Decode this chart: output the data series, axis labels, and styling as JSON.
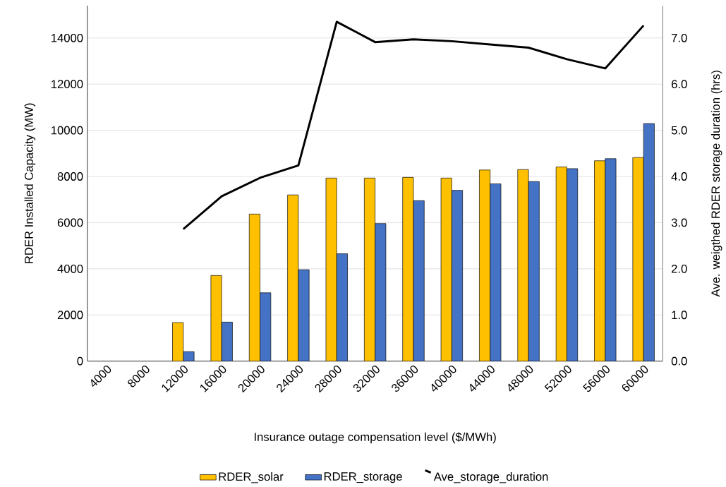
{
  "chart_data": {
    "type": "bar",
    "xlabel": "Insurance outage compensation level ($/MWh)",
    "ylabel": "RDER Installed Capacity (MW)",
    "y2label": "Ave. weigthed RDER storage duration (hrs)",
    "categories": [
      "4000",
      "8000",
      "12000",
      "16000",
      "20000",
      "24000",
      "28000",
      "32000",
      "36000",
      "40000",
      "44000",
      "48000",
      "52000",
      "56000",
      "60000"
    ],
    "series": [
      {
        "name": "RDER_solar",
        "color": "#ffc000",
        "values": [
          null,
          null,
          1670,
          3710,
          6370,
          7200,
          7930,
          7930,
          7960,
          7930,
          8280,
          8300,
          8410,
          8680,
          8820
        ]
      },
      {
        "name": "RDER_storage",
        "color": "#4472c4",
        "values": [
          null,
          null,
          410,
          1690,
          2960,
          3960,
          4650,
          5960,
          6950,
          7400,
          7680,
          7780,
          8340,
          8770,
          10290
        ]
      },
      {
        "name": "Ave_storage_duration",
        "type": "line",
        "axis": "y2",
        "color": "#000000",
        "values": [
          null,
          null,
          2.86,
          3.57,
          3.97,
          4.24,
          7.35,
          6.91,
          6.97,
          6.93,
          6.86,
          6.79,
          6.54,
          6.34,
          7.27
        ]
      }
    ],
    "ylim": [
      0,
      15400
    ],
    "yticks": [
      0,
      2000,
      4000,
      6000,
      8000,
      10000,
      12000,
      14000
    ],
    "y2lim": [
      0,
      7.7
    ],
    "y2ticks": [
      {
        "value": 0,
        "label": "0.0"
      },
      {
        "value": 1,
        "label": "1.0"
      },
      {
        "value": 2,
        "label": "2.0"
      },
      {
        "value": 3,
        "label": "3.0"
      },
      {
        "value": 4,
        "label": "4.0"
      },
      {
        "value": 5,
        "label": "5.0"
      },
      {
        "value": 6,
        "label": "6.0"
      },
      {
        "value": 7,
        "label": "7.0"
      }
    ],
    "grid": "y",
    "legend": "bottom"
  }
}
